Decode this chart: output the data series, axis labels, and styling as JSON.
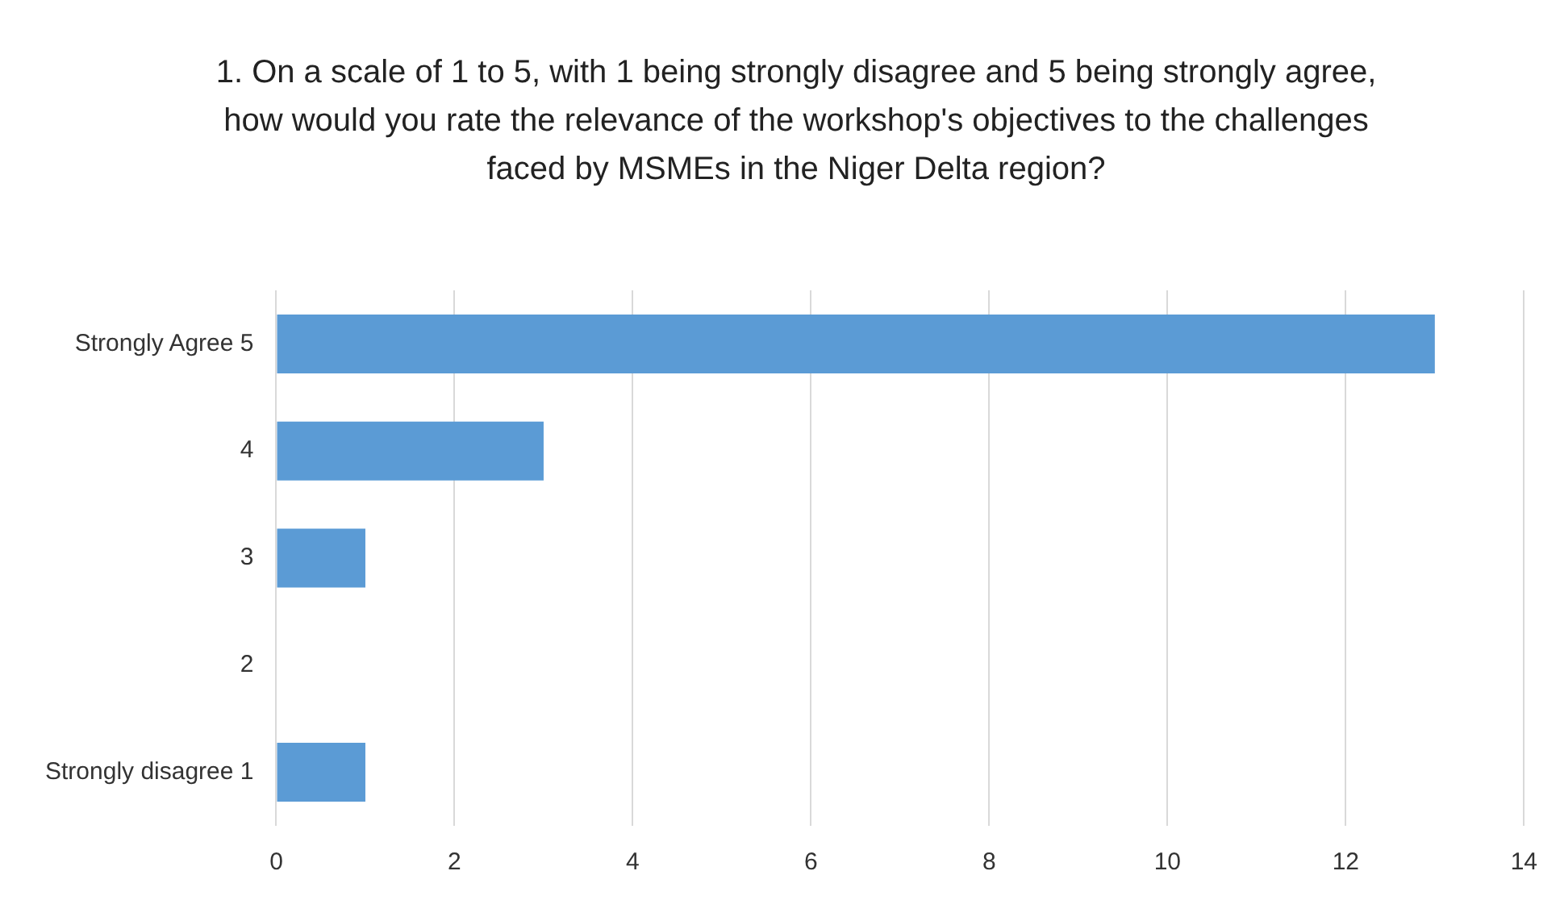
{
  "chart_data": {
    "type": "bar",
    "orientation": "horizontal",
    "title": "1. On a scale of 1 to 5, with 1 being strongly disagree and 5 being strongly agree, how would you rate the relevance of the workshop's objectives to the challenges faced by MSMEs in the Niger Delta region?",
    "categories": [
      "Strongly Agree 5",
      "4",
      "3",
      "2",
      "Strongly disagree 1"
    ],
    "values": [
      13,
      3,
      1,
      0,
      1
    ],
    "color": "#5b9bd5",
    "xlim": [
      0,
      14
    ],
    "xticks": [
      0,
      2,
      4,
      6,
      8,
      10,
      12,
      14
    ],
    "grid": "x",
    "legend": false
  }
}
